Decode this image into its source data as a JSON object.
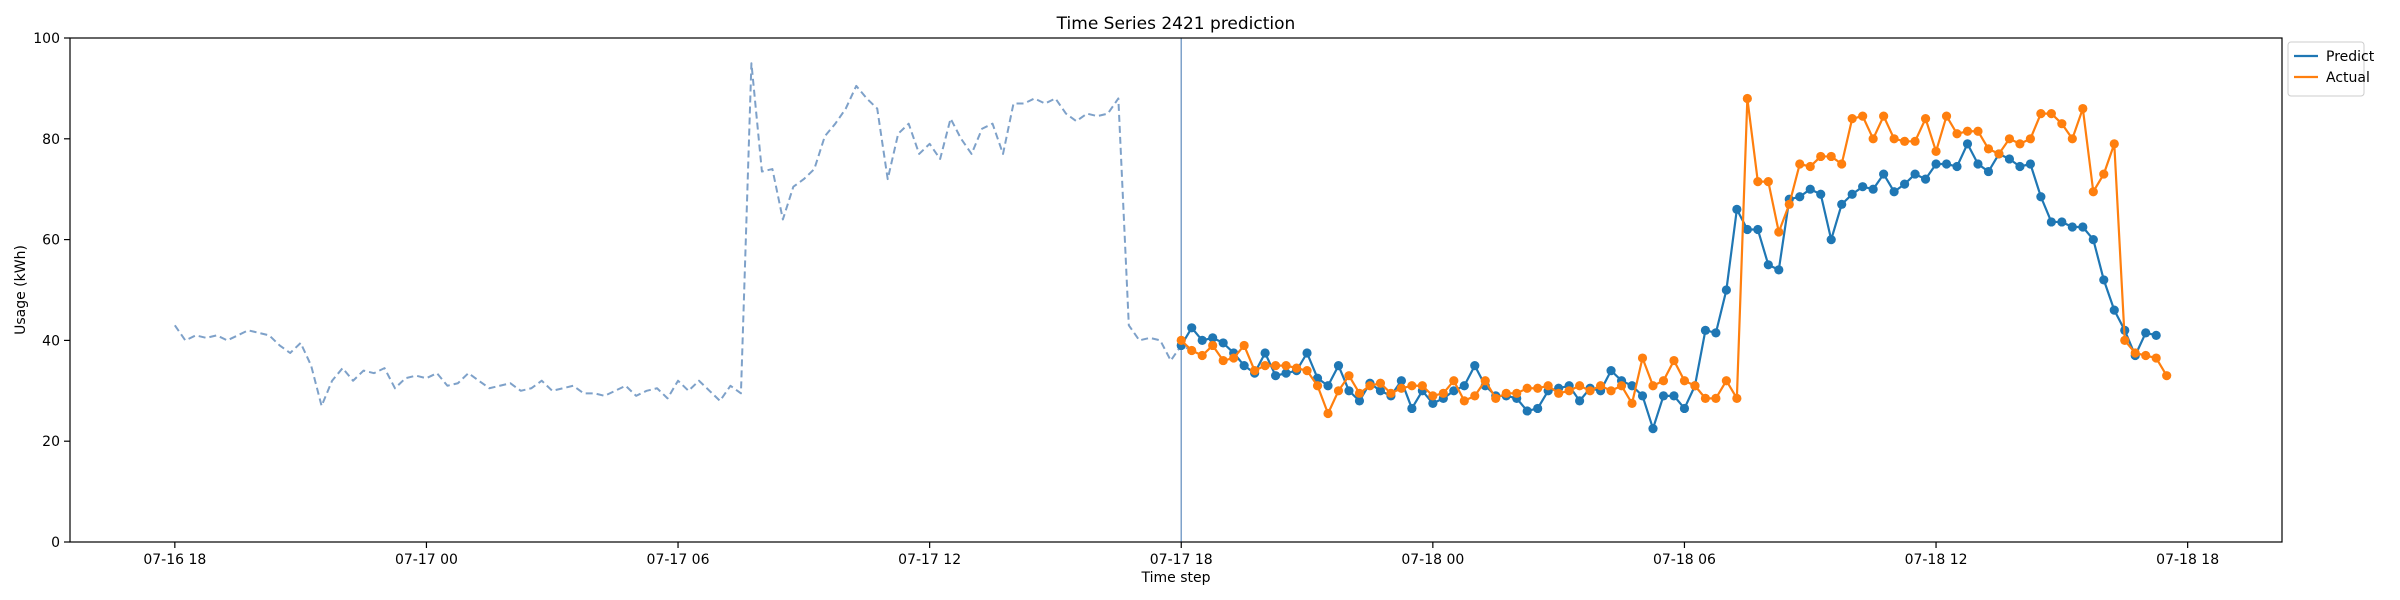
{
  "chart_data": {
    "type": "line",
    "title": "Time Series 2421 prediction",
    "xlabel": "Time step",
    "ylabel": "Usage (kWh)",
    "ylim": [
      0,
      100
    ],
    "yticks": [
      0,
      20,
      40,
      60,
      80,
      100
    ],
    "xlim": [
      "2024-07-16 15:30",
      "2024-07-18 20:15"
    ],
    "xticks": [
      {
        "t": "2024-07-16 18:00",
        "label": "07-16 18"
      },
      {
        "t": "2024-07-17 00:00",
        "label": "07-17 00"
      },
      {
        "t": "2024-07-17 06:00",
        "label": "07-17 06"
      },
      {
        "t": "2024-07-17 12:00",
        "label": "07-17 12"
      },
      {
        "t": "2024-07-17 18:00",
        "label": "07-17 18"
      },
      {
        "t": "2024-07-18 00:00",
        "label": "07-18 00"
      },
      {
        "t": "2024-07-18 06:00",
        "label": "07-18 06"
      },
      {
        "t": "2024-07-18 12:00",
        "label": "07-18 12"
      },
      {
        "t": "2024-07-18 18:00",
        "label": "07-18 18"
      }
    ],
    "x_step_minutes": 15,
    "forecast_start": "2024-07-17 18:00",
    "legend_position": "top-right",
    "grid": false,
    "series": [
      {
        "name": "",
        "style": "history-dashed",
        "color": "#7ea1c9",
        "x_start": "2024-07-16 18:00",
        "values": [
          43,
          40,
          41,
          40.5,
          41,
          40,
          41,
          42,
          41.5,
          41,
          39,
          37.5,
          39.5,
          35,
          27,
          32,
          34.5,
          32,
          34,
          33.5,
          34.5,
          30.5,
          32.5,
          33,
          32.5,
          33.5,
          31,
          31.5,
          33.5,
          32,
          30.5,
          31,
          31.5,
          30,
          30.5,
          32,
          30,
          30.5,
          31,
          29.5,
          29.5,
          29,
          30,
          31,
          29,
          30,
          30.5,
          28.5,
          32,
          30,
          32,
          30,
          28,
          31,
          29.5,
          95,
          73.5,
          74,
          64,
          70.5,
          72,
          74,
          80.5,
          83,
          86,
          90.5,
          88,
          86,
          72,
          81,
          83,
          77,
          79,
          76,
          84,
          80,
          77,
          82,
          83,
          77,
          87,
          87,
          88,
          87,
          88,
          85,
          83.5,
          85,
          84.5,
          85,
          88,
          43,
          40,
          40.5,
          40,
          36,
          39,
          38
        ]
      },
      {
        "name": "Predict",
        "style": "line-markers",
        "color": "#1f77b4",
        "x_start": "2024-07-17 18:00",
        "values": [
          39,
          42.5,
          40,
          40.5,
          39.5,
          37.5,
          35,
          33.5,
          37.5,
          33,
          33.5,
          34,
          37.5,
          32.5,
          31,
          35,
          30,
          28,
          31.5,
          30,
          29,
          32,
          26.5,
          30,
          27.5,
          28.5,
          30,
          31,
          35,
          31,
          29,
          29,
          28.5,
          26,
          26.5,
          30,
          30.5,
          31,
          28,
          30.5,
          30,
          34,
          32,
          31,
          29,
          22.5,
          29,
          29,
          26.5,
          31,
          42,
          41.5,
          50,
          66,
          62,
          62,
          55,
          54,
          68,
          68.5,
          70,
          69,
          60,
          67,
          69,
          70.5,
          70,
          73,
          69.5,
          71,
          73,
          72,
          75,
          75,
          74.5,
          79,
          75,
          73.5,
          77,
          76,
          74.5,
          75,
          68.5,
          63.5,
          63.5,
          62.5,
          62.5,
          60,
          52,
          46,
          42,
          37,
          41.5,
          41
        ]
      },
      {
        "name": "Actual",
        "style": "line-markers",
        "color": "#ff7f0e",
        "x_start": "2024-07-17 18:00",
        "values": [
          40,
          38,
          37,
          39,
          36,
          36.5,
          39,
          34,
          35,
          35,
          35,
          34.5,
          34,
          31,
          25.5,
          30,
          33,
          29.5,
          31,
          31.5,
          29.5,
          30.5,
          31,
          31,
          29,
          29.5,
          32,
          28,
          29,
          32,
          28.5,
          29.5,
          29.5,
          30.5,
          30.5,
          31,
          29.5,
          30,
          31,
          30,
          31,
          30,
          31,
          27.5,
          36.5,
          31,
          32,
          36,
          32,
          31,
          28.5,
          28.5,
          32,
          28.5,
          88,
          71.5,
          71.5,
          61.5,
          67,
          75,
          74.5,
          76.5,
          76.5,
          75,
          84,
          84.5,
          80,
          84.5,
          80,
          79.5,
          79.5,
          84,
          77.5,
          84.5,
          81,
          81.5,
          81.5,
          78,
          77,
          80,
          79,
          80,
          85,
          85,
          83,
          80,
          86,
          69.5,
          73,
          79,
          40,
          37.5,
          37,
          36.5,
          33
        ]
      }
    ]
  }
}
